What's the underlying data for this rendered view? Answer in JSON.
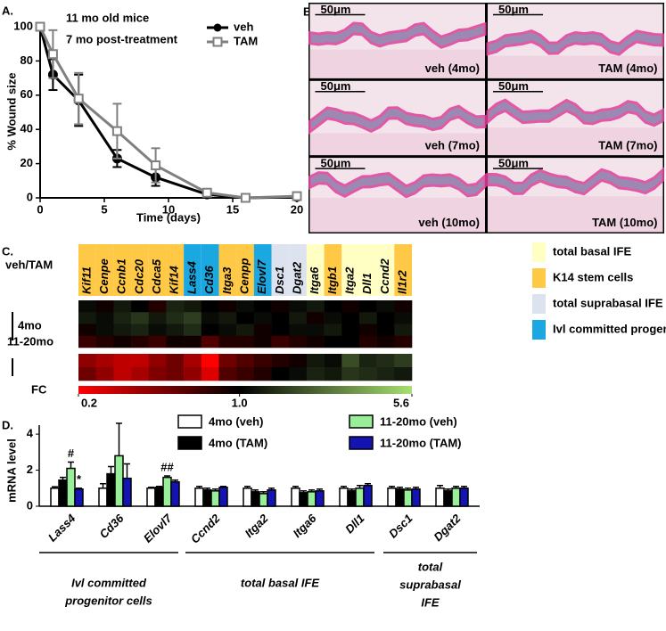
{
  "chart_data": [
    {
      "type": "line",
      "panel_label": "A.",
      "annotations": [
        "11 mo old mice",
        "7 mo post-treatment"
      ],
      "x_label": "Time (days)",
      "y_label": "% Wound size",
      "x": [
        0,
        1,
        3,
        6,
        9,
        13,
        16,
        20
      ],
      "series": [
        {
          "name": "veh",
          "color": "#000000",
          "marker": "circle",
          "values": [
            100,
            72,
            57,
            23,
            12,
            2,
            0,
            0.5
          ],
          "errors": [
            0,
            9,
            15,
            5,
            5,
            1,
            0,
            0
          ]
        },
        {
          "name": "TAM",
          "color": "#808080",
          "marker": "square",
          "values": [
            100,
            84,
            58,
            39,
            19,
            3,
            0,
            1
          ],
          "errors": [
            0,
            14,
            15,
            16,
            10,
            2,
            1,
            1
          ]
        }
      ],
      "xlim": [
        0,
        20
      ],
      "xticks": [
        0,
        5,
        10,
        15,
        20
      ],
      "ylim": [
        0,
        100
      ],
      "yticks": [
        0,
        20,
        40,
        60,
        80,
        100
      ]
    },
    {
      "type": "heatmap",
      "panel_label": "C.",
      "row_label": "veh/TAM",
      "scale_label": "FC",
      "categories": [
        "Kif11",
        "Cenpe",
        "Ccnb1",
        "Cdc20",
        "Cdca5",
        "Kif14",
        "Lass4",
        "Cd36",
        "Itga3",
        "Cenpp",
        "Elovl7",
        "Dsc1",
        "Dgat2",
        "Itga6",
        "Itgb1",
        "Itga2",
        "Dll1",
        "Ccnd2",
        "Il1r2"
      ],
      "header_colors": [
        "#ffc845",
        "#ffc845",
        "#ffc845",
        "#ffc845",
        "#ffc845",
        "#ffc845",
        "#1ba8e0",
        "#1ba8e0",
        "#ffc845",
        "#ffc845",
        "#1ba8e0",
        "#dde3ee",
        "#dde3ee",
        "#ffffc4",
        "#ffc845",
        "#ffffc4",
        "#ffffc4",
        "#ffffc4",
        "#ffc845"
      ],
      "groups": [
        {
          "name": "4mo",
          "values": [
            [
              1.1,
              0.9,
              1.2,
              1.0,
              0.8,
              1.3,
              1.2,
              1.0,
              0.9,
              1.1,
              1.0,
              0.9,
              1.1,
              1.2,
              1.0,
              0.9,
              1.0,
              1.1,
              0.9
            ],
            [
              1.2,
              1.1,
              1.3,
              1.5,
              1.2,
              1.4,
              1.6,
              1.1,
              1.2,
              1.0,
              1.1,
              1.0,
              1.2,
              0.9,
              1.1,
              1.0,
              1.2,
              1.0,
              1.1
            ],
            [
              0.9,
              1.1,
              1.2,
              1.3,
              1.1,
              1.2,
              1.4,
              1.0,
              1.1,
              1.2,
              0.9,
              1.0,
              1.1,
              1.1,
              1.2,
              1.0,
              0.9,
              1.0,
              1.2
            ],
            [
              0.7,
              0.8,
              0.9,
              0.8,
              0.7,
              0.9,
              0.9,
              0.6,
              0.8,
              0.8,
              0.9,
              0.7,
              0.8,
              0.9,
              1.0,
              1.0,
              0.8,
              0.9,
              0.8
            ]
          ]
        },
        {
          "name": "11-20mo",
          "values": [
            [
              0.4,
              0.35,
              0.3,
              0.3,
              0.4,
              0.5,
              0.35,
              0.2,
              0.5,
              0.6,
              0.7,
              0.8,
              0.9,
              1.2,
              1.1,
              1.8,
              1.3,
              1.4,
              1.6
            ],
            [
              0.5,
              0.4,
              0.3,
              0.35,
              0.45,
              0.5,
              0.4,
              0.25,
              0.6,
              0.7,
              0.8,
              1.0,
              1.1,
              1.3,
              1.2,
              1.5,
              1.4,
              1.3,
              1.2
            ]
          ]
        }
      ],
      "clim": [
        0.2,
        5.6
      ],
      "cticks": [
        0.2,
        {
          "value": 1,
          "label": "1.0"
        },
        5.6
      ],
      "low_color": "#ff0000",
      "mid_color": "#000000",
      "high_color": "#a8e070",
      "legend": [
        {
          "name": "total basal IFE",
          "color": "#ffffc4",
          "text_color": "#e02020"
        },
        {
          "name": "K14 stem cells",
          "color": "#ffc845",
          "text_color": "#e02020"
        },
        {
          "name": "total suprabasal IFE",
          "color": "#dde3ee",
          "text_color": "#1f3a7a"
        },
        {
          "name": "Ivl committed progenitor cells",
          "color": "#1ba8e0",
          "text_color": "#1f3a7a"
        }
      ]
    },
    {
      "type": "bar",
      "panel_label": "D.",
      "y_label": "mRNA level",
      "categories": [
        "Lass4",
        "Cd36",
        "Elovl7",
        "Ccnd2",
        "Itga2",
        "Itga6",
        "Dll1",
        "Dsc1",
        "Dgat2"
      ],
      "series": [
        {
          "name": "4mo (veh)",
          "color": "#ffffff",
          "values": [
            1.0,
            1.0,
            1.0,
            1.0,
            1.0,
            1.0,
            1.0,
            1.0,
            1.0
          ],
          "errors": [
            0.08,
            0.25,
            0.05,
            0.1,
            0.1,
            0.1,
            0.1,
            0.1,
            0.15
          ],
          "significance": [
            null,
            null,
            null,
            null,
            null,
            null,
            null,
            null,
            null
          ]
        },
        {
          "name": "4mo (TAM)",
          "color": "#000000",
          "values": [
            1.45,
            1.8,
            1.05,
            0.9,
            0.8,
            0.75,
            0.85,
            0.95,
            0.85
          ],
          "errors": [
            0.15,
            0.4,
            0.05,
            0.1,
            0.1,
            0.1,
            0.1,
            0.1,
            0.1
          ],
          "significance": [
            null,
            null,
            null,
            null,
            null,
            null,
            null,
            null,
            null
          ]
        },
        {
          "name": "11-20mo (veh)",
          "color": "#99ee99",
          "values": [
            2.1,
            2.8,
            1.6,
            0.85,
            0.7,
            0.8,
            1.0,
            0.9,
            1.0
          ],
          "errors": [
            0.35,
            1.8,
            0.08,
            0.1,
            0.1,
            0.1,
            0.15,
            0.1,
            0.1
          ],
          "significance": [
            "#",
            null,
            "##",
            null,
            null,
            null,
            null,
            null,
            null
          ]
        },
        {
          "name": "11-20mo (TAM)",
          "color": "#1414b4",
          "values": [
            0.95,
            1.55,
            1.35,
            1.05,
            0.9,
            0.85,
            1.15,
            0.95,
            1.0
          ],
          "errors": [
            0.05,
            0.8,
            0.1,
            0.05,
            0.1,
            0.1,
            0.1,
            0.1,
            0.1
          ],
          "significance": [
            "*",
            null,
            null,
            null,
            null,
            null,
            null,
            null,
            null
          ]
        }
      ],
      "category_groups": [
        {
          "label": [
            "Ivl committed",
            "progenitor cells"
          ]
        },
        {
          "label": [
            "total basal IFE"
          ]
        },
        {
          "label": [
            "total",
            "suprabasal",
            "IFE"
          ]
        }
      ],
      "ylim": [
        0,
        4.5
      ],
      "yticks": [
        0,
        2,
        4
      ]
    }
  ],
  "micrographs": {
    "panel_label": "B.",
    "scale_bar": "50μm",
    "captions": [
      "veh (4mo)",
      "TAM (4mo)",
      "veh (7mo)",
      "TAM (7mo)",
      "veh (10mo)",
      "TAM (10mo)"
    ]
  }
}
